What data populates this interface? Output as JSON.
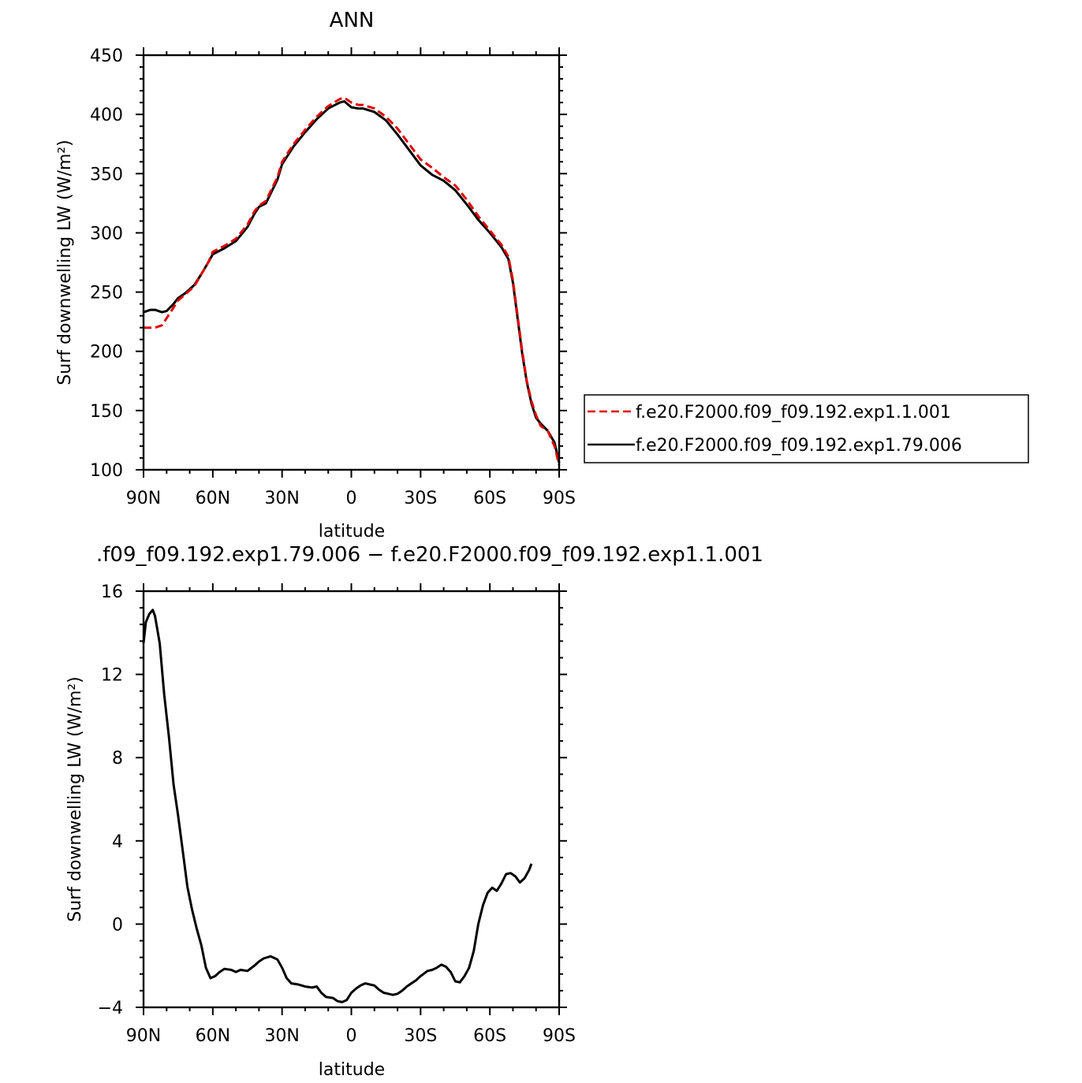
{
  "chart_data": [
    {
      "type": "line",
      "title": "ANN",
      "xlabel": "latitude",
      "ylabel": "Surf downwelling LW (W/m²)",
      "xlim": [
        90,
        -90
      ],
      "ylim": [
        100,
        450
      ],
      "x_ticks": [
        {
          "value": 90,
          "label": "90N"
        },
        {
          "value": 60,
          "label": "60N"
        },
        {
          "value": 30,
          "label": "30N"
        },
        {
          "value": 0,
          "label": "0"
        },
        {
          "value": -30,
          "label": "30S"
        },
        {
          "value": -60,
          "label": "60S"
        },
        {
          "value": -90,
          "label": "90S"
        }
      ],
      "y_ticks": [
        100,
        150,
        200,
        250,
        300,
        350,
        400,
        450
      ],
      "legend_position": "right",
      "series": [
        {
          "name": "f.e20.F2000.f09_f09.192.exp1.1.001",
          "color": "#e00000",
          "dash": "dashed",
          "points": [
            [
              90,
              220
            ],
            [
              85,
              220
            ],
            [
              82,
              222
            ],
            [
              80,
              228
            ],
            [
              77,
              237
            ],
            [
              75,
              243
            ],
            [
              72,
              248
            ],
            [
              68,
              255
            ],
            [
              65,
              265
            ],
            [
              62,
              275
            ],
            [
              60,
              284
            ],
            [
              55,
              289
            ],
            [
              50,
              295
            ],
            [
              45,
              307
            ],
            [
              42,
              318
            ],
            [
              40,
              323
            ],
            [
              37,
              327
            ],
            [
              35,
              335
            ],
            [
              32,
              347
            ],
            [
              30,
              360
            ],
            [
              25,
              375
            ],
            [
              20,
              387
            ],
            [
              15,
              398
            ],
            [
              10,
              407
            ],
            [
              5,
              413
            ],
            [
              3,
              414
            ],
            [
              0,
              410
            ],
            [
              -3,
              408
            ],
            [
              -5,
              408
            ],
            [
              -10,
              405
            ],
            [
              -15,
              398
            ],
            [
              -20,
              388
            ],
            [
              -25,
              375
            ],
            [
              -30,
              362
            ],
            [
              -35,
              355
            ],
            [
              -40,
              347
            ],
            [
              -45,
              340
            ],
            [
              -50,
              328
            ],
            [
              -55,
              314
            ],
            [
              -60,
              302
            ],
            [
              -65,
              290
            ],
            [
              -68,
              280
            ],
            [
              -70,
              260
            ],
            [
              -72,
              230
            ],
            [
              -74,
              200
            ],
            [
              -76,
              175
            ],
            [
              -78,
              158
            ],
            [
              -80,
              146
            ],
            [
              -82,
              137
            ],
            [
              -85,
              133
            ],
            [
              -88,
              120
            ],
            [
              -90,
              104
            ]
          ]
        },
        {
          "name": "f.e20.F2000.f09_f09.192.exp1.79.006",
          "color": "#000000",
          "dash": "solid",
          "points": [
            [
              90,
              233
            ],
            [
              87,
              235
            ],
            [
              85,
              235
            ],
            [
              82,
              233
            ],
            [
              80,
              234
            ],
            [
              77,
              240
            ],
            [
              75,
              245
            ],
            [
              72,
              249
            ],
            [
              68,
              256
            ],
            [
              65,
              265
            ],
            [
              62,
              275
            ],
            [
              60,
              282
            ],
            [
              55,
              287
            ],
            [
              50,
              293
            ],
            [
              45,
              305
            ],
            [
              42,
              316
            ],
            [
              40,
              322
            ],
            [
              37,
              325
            ],
            [
              35,
              333
            ],
            [
              32,
              345
            ],
            [
              30,
              358
            ],
            [
              25,
              373
            ],
            [
              20,
              385
            ],
            [
              15,
              396
            ],
            [
              10,
              405
            ],
            [
              5,
              410
            ],
            [
              3,
              411
            ],
            [
              0,
              406
            ],
            [
              -3,
              405
            ],
            [
              -5,
              405
            ],
            [
              -10,
              402
            ],
            [
              -15,
              395
            ],
            [
              -20,
              383
            ],
            [
              -25,
              370
            ],
            [
              -30,
              357
            ],
            [
              -35,
              349
            ],
            [
              -40,
              344
            ],
            [
              -45,
              336
            ],
            [
              -50,
              324
            ],
            [
              -55,
              311
            ],
            [
              -60,
              300
            ],
            [
              -65,
              288
            ],
            [
              -68,
              278
            ],
            [
              -70,
              258
            ],
            [
              -72,
              228
            ],
            [
              -74,
              198
            ],
            [
              -76,
              174
            ],
            [
              -78,
              156
            ],
            [
              -80,
              144
            ],
            [
              -82,
              139
            ],
            [
              -85,
              133
            ],
            [
              -88,
              123
            ],
            [
              -90,
              106
            ]
          ]
        }
      ]
    },
    {
      "type": "line",
      "title": ".f09_f09.192.exp1.79.006 − f.e20.F2000.f09_f09.192.exp1.1.001",
      "xlabel": "latitude",
      "ylabel": "Surf downwelling LW (W/m²)",
      "xlim": [
        90,
        -90
      ],
      "ylim": [
        -4,
        16
      ],
      "x_ticks": [
        {
          "value": 90,
          "label": "90N"
        },
        {
          "value": 60,
          "label": "60N"
        },
        {
          "value": 30,
          "label": "30N"
        },
        {
          "value": 0,
          "label": "0"
        },
        {
          "value": -30,
          "label": "30S"
        },
        {
          "value": -60,
          "label": "60S"
        },
        {
          "value": -90,
          "label": "90S"
        }
      ],
      "y_ticks": [
        -4,
        0,
        4,
        8,
        12,
        16
      ],
      "series": [
        {
          "color": "#000000",
          "dash": "solid",
          "points": [
            [
              90,
              13.5
            ],
            [
              89,
              14.5
            ],
            [
              87.5,
              14.9
            ],
            [
              86,
              15.1
            ],
            [
              85,
              14.8
            ],
            [
              83,
              13.5
            ],
            [
              81,
              11
            ],
            [
              79,
              9
            ],
            [
              77,
              6.7
            ],
            [
              75,
              5.2
            ],
            [
              73,
              3.5
            ],
            [
              71,
              1.8
            ],
            [
              69,
              0.7
            ],
            [
              67,
              -0.2
            ],
            [
              65,
              -1
            ],
            [
              63,
              -2.1
            ],
            [
              61,
              -2.6
            ],
            [
              59,
              -2.5
            ],
            [
              57,
              -2.3
            ],
            [
              55,
              -2.15
            ],
            [
              52,
              -2.2
            ],
            [
              50,
              -2.3
            ],
            [
              48,
              -2.2
            ],
            [
              45,
              -2.25
            ],
            [
              42,
              -2.0
            ],
            [
              40,
              -1.8
            ],
            [
              38,
              -1.65
            ],
            [
              35,
              -1.55
            ],
            [
              32,
              -1.7
            ],
            [
              30,
              -2.1
            ],
            [
              28,
              -2.6
            ],
            [
              26,
              -2.85
            ],
            [
              23,
              -2.9
            ],
            [
              20,
              -3.0
            ],
            [
              17,
              -3.05
            ],
            [
              15,
              -3.0
            ],
            [
              13,
              -3.3
            ],
            [
              11,
              -3.5
            ],
            [
              8,
              -3.55
            ],
            [
              6,
              -3.7
            ],
            [
              4,
              -3.75
            ],
            [
              2,
              -3.65
            ],
            [
              0,
              -3.3
            ],
            [
              -2,
              -3.1
            ],
            [
              -4,
              -2.95
            ],
            [
              -6,
              -2.85
            ],
            [
              -8,
              -2.9
            ],
            [
              -10,
              -2.95
            ],
            [
              -12,
              -3.15
            ],
            [
              -14,
              -3.3
            ],
            [
              -16,
              -3.35
            ],
            [
              -18,
              -3.4
            ],
            [
              -20,
              -3.35
            ],
            [
              -22,
              -3.2
            ],
            [
              -24,
              -3.0
            ],
            [
              -26,
              -2.85
            ],
            [
              -28,
              -2.7
            ],
            [
              -30,
              -2.5
            ],
            [
              -33,
              -2.25
            ],
            [
              -35,
              -2.2
            ],
            [
              -37,
              -2.1
            ],
            [
              -39,
              -1.95
            ],
            [
              -41,
              -2.05
            ],
            [
              -43,
              -2.3
            ],
            [
              -45,
              -2.75
            ],
            [
              -47,
              -2.8
            ],
            [
              -49,
              -2.5
            ],
            [
              -51,
              -2.1
            ],
            [
              -53,
              -1.3
            ],
            [
              -55,
              0
            ],
            [
              -57,
              0.9
            ],
            [
              -59,
              1.5
            ],
            [
              -61,
              1.75
            ],
            [
              -63,
              1.6
            ],
            [
              -65,
              1.95
            ],
            [
              -67,
              2.4
            ],
            [
              -69,
              2.45
            ],
            [
              -71,
              2.3
            ],
            [
              -73,
              2.0
            ],
            [
              -75,
              2.2
            ],
            [
              -77,
              2.6
            ],
            [
              -78,
              2.9
            ]
          ]
        }
      ]
    }
  ]
}
